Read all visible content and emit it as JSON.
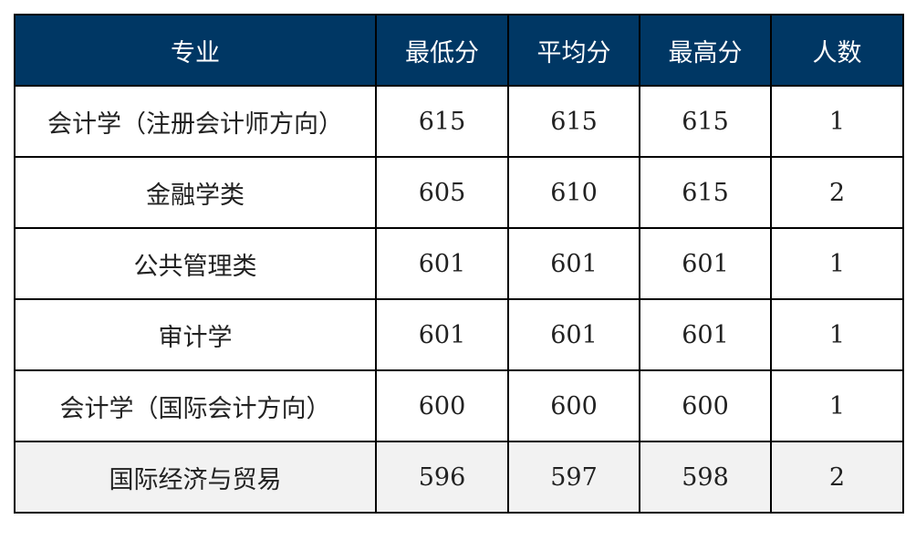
{
  "table": {
    "headers": [
      "专业",
      "最低分",
      "平均分",
      "最高分",
      "人数"
    ],
    "rows": [
      [
        "会计学（注册会计师方向）",
        "615",
        "615",
        "615",
        "1"
      ],
      [
        "金融学类",
        "605",
        "610",
        "615",
        "2"
      ],
      [
        "公共管理类",
        "601",
        "601",
        "601",
        "1"
      ],
      [
        "审计学",
        "601",
        "601",
        "601",
        "1"
      ],
      [
        "会计学（国际会计方向）",
        "600",
        "600",
        "600",
        "1"
      ],
      [
        "国际经济与贸易",
        "596",
        "597",
        "598",
        "2"
      ]
    ]
  },
  "colors": {
    "header_bg": "#003764",
    "header_text": "#ffffff",
    "last_row_bg": "#f2f2f2"
  }
}
